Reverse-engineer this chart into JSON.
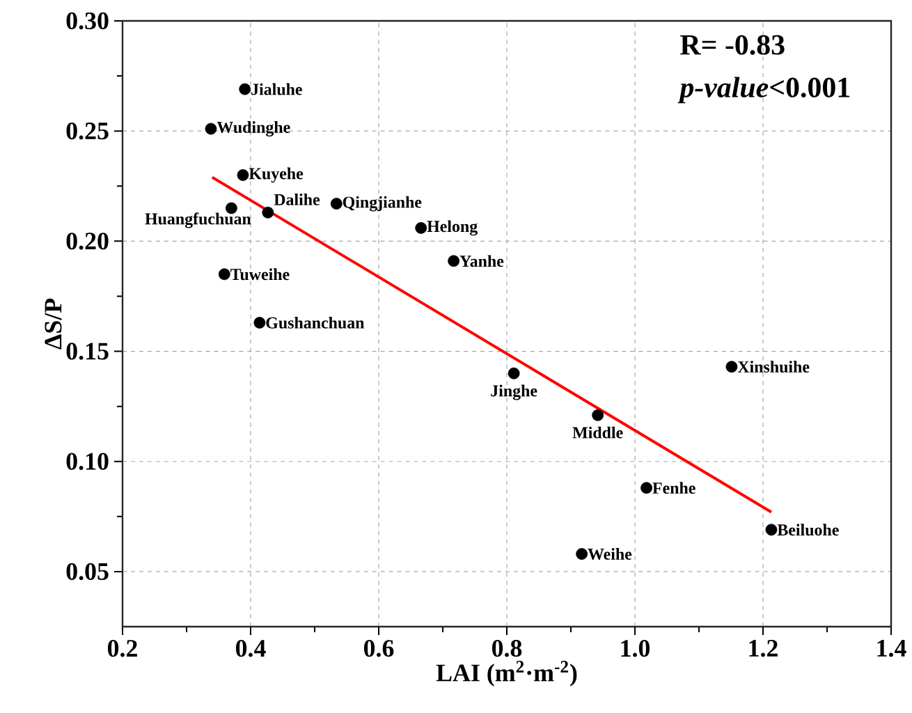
{
  "chart_data": {
    "type": "scatter",
    "xlabel": "LAI (m$^{2}$·m$^{-2}$)",
    "ylabel": "ΔS/P",
    "xlim": [
      0.2,
      1.4
    ],
    "xticks": [
      {
        "value": 0.2,
        "label": "0.2"
      },
      {
        "value": 0.4,
        "label": "0.4"
      },
      {
        "value": 0.6,
        "label": "0.6"
      },
      {
        "value": 0.8,
        "label": "0.8"
      },
      {
        "value": 1.0,
        "label": "1.0"
      },
      {
        "value": 1.2,
        "label": "1.2"
      },
      {
        "value": 1.4,
        "label": "1.4"
      }
    ],
    "ylim": [
      0.025,
      0.3
    ],
    "yticks": [
      {
        "value": 0.05,
        "label": "0.05"
      },
      {
        "value": 0.1,
        "label": "0.10"
      },
      {
        "value": 0.15,
        "label": "0.15"
      },
      {
        "value": 0.2,
        "label": "0.20"
      },
      {
        "value": 0.25,
        "label": "0.25"
      },
      {
        "value": 0.3,
        "label": "0.30"
      }
    ],
    "grid": true,
    "series": [
      {
        "type": "scatter",
        "marker": "circle",
        "color": "#000000",
        "x": [
          0.391,
          0.338,
          0.388,
          0.37,
          0.427,
          0.534,
          0.666,
          0.717,
          0.359,
          0.414,
          0.811,
          0.942,
          1.151,
          1.018,
          1.213,
          0.917
        ],
        "values": [
          0.269,
          0.251,
          0.23,
          0.215,
          0.213,
          0.217,
          0.206,
          0.191,
          0.185,
          0.163,
          0.14,
          0.121,
          0.143,
          0.088,
          0.069,
          0.058
        ]
      },
      {
        "type": "line",
        "marker": "none",
        "color": "#ff0000",
        "x": [
          0.34,
          1.213
        ],
        "values": [
          0.229,
          0.077
        ]
      }
    ],
    "annotations": [
      "R= -0.83",
      "*p-value*<0.001",
      {
        "text": "Jialuhe",
        "x": 0.391,
        "y": 0.269
      },
      {
        "text": "Wudinghe",
        "x": 0.338,
        "y": 0.251
      },
      {
        "text": "Kuyehe",
        "x": 0.388,
        "y": 0.23
      },
      {
        "text": "Huangfuchuan",
        "x": 0.37,
        "y": 0.215
      },
      {
        "text": "Dalihe",
        "x": 0.427,
        "y": 0.213
      },
      {
        "text": "Qingjianhe",
        "x": 0.534,
        "y": 0.217
      },
      {
        "text": "Helong",
        "x": 0.666,
        "y": 0.206
      },
      {
        "text": "Yanhe",
        "x": 0.717,
        "y": 0.191
      },
      {
        "text": "Tuweihe",
        "x": 0.359,
        "y": 0.185
      },
      {
        "text": "Gushanchuan",
        "x": 0.414,
        "y": 0.163
      },
      {
        "text": "Jinghe",
        "x": 0.811,
        "y": 0.14
      },
      {
        "text": "Middle",
        "x": 0.942,
        "y": 0.121
      },
      {
        "text": "Xinshuihe",
        "x": 1.151,
        "y": 0.143
      },
      {
        "text": "Fenhe",
        "x": 1.018,
        "y": 0.088
      },
      {
        "text": "Beiluohe",
        "x": 1.213,
        "y": 0.069
      },
      {
        "text": "Weihe",
        "x": 0.917,
        "y": 0.058
      }
    ]
  }
}
